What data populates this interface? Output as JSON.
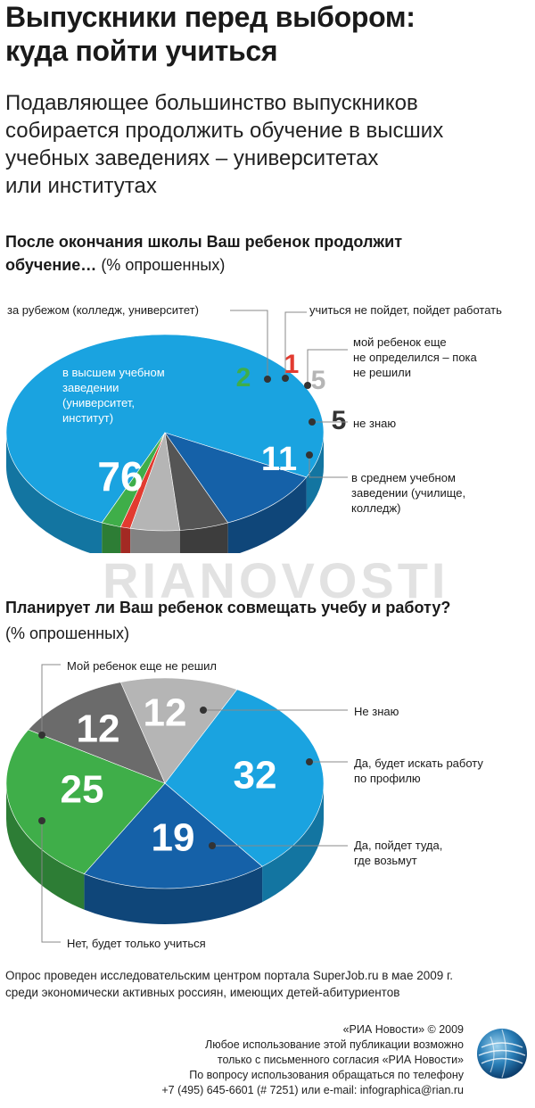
{
  "header": {
    "title_line1": "Выпускники перед выбором:",
    "title_line2": "куда пойти учиться",
    "subtitle_lines": [
      "Подавляющее большинство выпускников",
      "собирается продолжить обучение в высших",
      "учебных заведениях – университетах",
      "или институтах"
    ]
  },
  "chart1_question": {
    "line1": "После окончания школы Ваш ребенок продолжит",
    "line2_bold": "обучение…",
    "unit": "(% опрошенных)"
  },
  "chart2_question": {
    "line1": "Планирует ли Ваш ребенок совмещать учебу и работу?",
    "unit": "(% опрошенных)"
  },
  "watermark": "RIANOVOSTI",
  "footer": {
    "note_line1": "Опрос проведен исследовательским центром портала SuperJob.ru в мае 2009 г.",
    "note_line2": "среди экономически активных россиян, имеющих детей-абитуриентов",
    "credit_lines": [
      "«РИА Новости» © 2009",
      "Любое использование этой публикации возможно",
      "только с письменного согласия «РИА Новости»",
      "По вопросу использования обращаться по телефону",
      "+7 (495) 645-6601 (# 7251) или e-mail: infographica@rian.ru"
    ]
  },
  "chart_data": [
    {
      "type": "pie",
      "title": "После окончания школы Ваш ребенок продолжит обучение… (% опрошенных)",
      "slices": [
        {
          "value": 76,
          "label": "в высшем учебном заведении (университет, институт)",
          "label_lines": [
            "в высшем учебном",
            "заведении",
            "(университет,",
            "институт)"
          ],
          "color": "#1aa3e0",
          "value_color": "#ffffff"
        },
        {
          "value": 2,
          "label": "за рубежом (колледж, университет)",
          "label_lines": [
            "за рубежом (колледж, университет)"
          ],
          "color": "#3fae49",
          "value_color": "#3fae49"
        },
        {
          "value": 1,
          "label": "учиться не пойдет, пойдет работать",
          "label_lines": [
            "учиться не пойдет, пойдет работать"
          ],
          "color": "#e23b30",
          "value_color": "#e23b30"
        },
        {
          "value": 5,
          "label": "мой ребенок еще не определился – пока не решили",
          "label_lines": [
            "мой ребенок еще",
            "не определился – пока",
            "не решили"
          ],
          "color": "#b5b5b5",
          "value_color": "#b5b5b5"
        },
        {
          "value": 5,
          "label": "не знаю",
          "label_lines": [
            "не знаю"
          ],
          "color": "#555555",
          "value_color": "#333333"
        },
        {
          "value": 11,
          "label": "в среднем учебном заведении (училище, колледж)",
          "label_lines": [
            "в среднем учебном",
            "заведении (училище,",
            "колледж)"
          ],
          "color": "#1561a8",
          "value_color": "#ffffff"
        }
      ]
    },
    {
      "type": "pie",
      "title": "Планирует ли Ваш ребенок совмещать учебу и работу? (% опрошенных)",
      "slices": [
        {
          "value": 32,
          "label": "Да, будет искать работу по профилю",
          "label_lines": [
            "Да, будет искать работу",
            "по профилю"
          ],
          "color": "#1aa3e0",
          "value_color": "#ffffff"
        },
        {
          "value": 19,
          "label": "Да, пойдет туда, где возьмут",
          "label_lines": [
            "Да, пойдет туда,",
            "где возьмут"
          ],
          "color": "#1561a8",
          "value_color": "#ffffff"
        },
        {
          "value": 25,
          "label": "Нет, будет только учиться",
          "label_lines": [
            "Нет, будет только учиться"
          ],
          "color": "#3fae49",
          "value_color": "#ffffff"
        },
        {
          "value": 12,
          "label": "Мой ребенок еще не решил",
          "label_lines": [
            "Мой ребенок еще не решил"
          ],
          "color": "#6b6b6b",
          "value_color": "#ffffff"
        },
        {
          "value": 12,
          "label": "Не знаю",
          "label_lines": [
            "Не знаю"
          ],
          "color": "#b5b5b5",
          "value_color": "#ffffff"
        }
      ]
    }
  ]
}
